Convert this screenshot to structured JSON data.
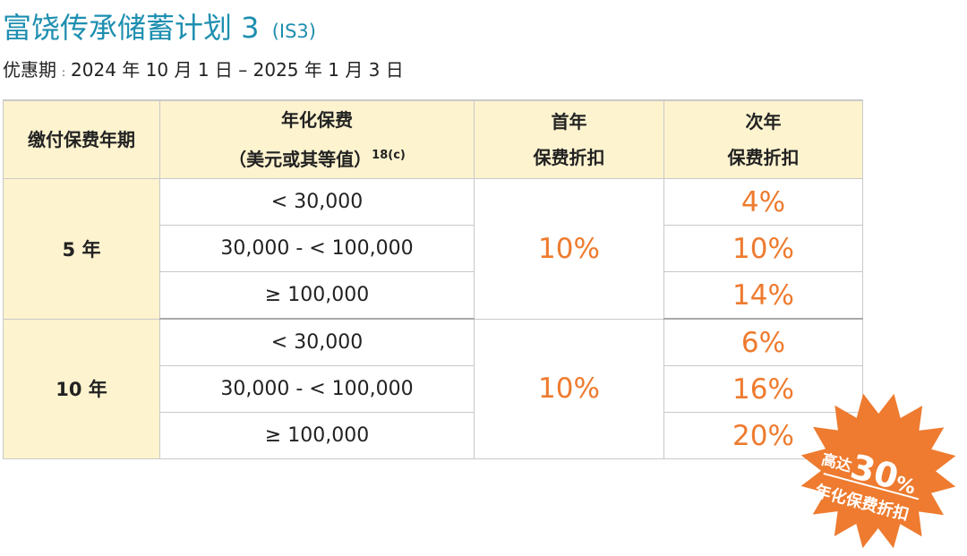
{
  "header": {
    "title": "富饶传承储蓄计划 3",
    "code": "(IS3)",
    "promo_label": "优惠期",
    "promo_colon": ":",
    "promo_period": "2024 年 10 月 1 日 – 2025 年 1 月 3 日"
  },
  "table": {
    "headers": {
      "term": "缴付保费年期",
      "premium_line1": "年化保费",
      "premium_line2": "（美元或其等值）",
      "premium_note": "18(c)",
      "first_line1": "首年",
      "first_line2": "保费折扣",
      "second_line1": "次年",
      "second_line2": "保费折扣"
    },
    "groups": [
      {
        "term": "5 年",
        "first_year": "10%",
        "rows": [
          {
            "band": "< 30,000",
            "second_year": "4%"
          },
          {
            "band": "30,000 - < 100,000",
            "second_year": "10%"
          },
          {
            "band": "≥ 100,000",
            "second_year": "14%"
          }
        ]
      },
      {
        "term": "10 年",
        "first_year": "10%",
        "rows": [
          {
            "band": "< 30,000",
            "second_year": "6%"
          },
          {
            "band": "30,000 - < 100,000",
            "second_year": "16%"
          },
          {
            "band": "≥ 100,000",
            "second_year": "20%"
          }
        ]
      }
    ]
  },
  "badge": {
    "prefix": "高达",
    "number": "30",
    "unit": "%",
    "caption": "年化保费折扣",
    "color": "#ee7b2f"
  }
}
